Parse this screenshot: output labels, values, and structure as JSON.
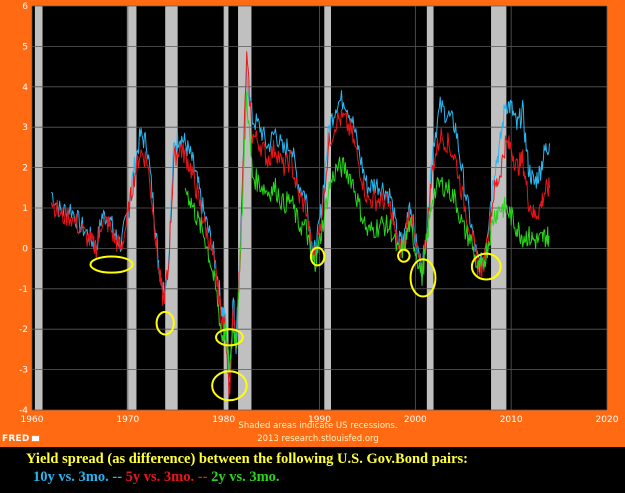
{
  "chart_data": {
    "type": "line",
    "title": "",
    "xlabel": "",
    "ylabel": "",
    "xlim": [
      1960,
      2020
    ],
    "ylim": [
      -4,
      6
    ],
    "x_ticks": [
      "1960",
      "1970",
      "1980",
      "1990",
      "2000",
      "2010",
      "2020"
    ],
    "y_ticks": [
      "-4",
      "-3",
      "-2",
      "-1",
      "0",
      "1",
      "2",
      "3",
      "4",
      "5",
      "6"
    ],
    "grid": true,
    "background": "#000000",
    "recession_color": "#c0c0c0",
    "recessions": [
      [
        1960.3,
        1961.1
      ],
      [
        1969.9,
        1970.9
      ],
      [
        1973.9,
        1975.2
      ],
      [
        1980.0,
        1980.5
      ],
      [
        1981.5,
        1982.9
      ],
      [
        1990.5,
        1991.2
      ],
      [
        2001.2,
        2001.9
      ],
      [
        2007.9,
        2009.5
      ]
    ],
    "series": [
      {
        "name": "10y vs. 3mo.",
        "color": "#2ab5ee",
        "x": [
          1962.0,
          1963.0,
          1964.0,
          1965.0,
          1966.0,
          1966.7,
          1967.3,
          1968.0,
          1968.7,
          1969.3,
          1970.0,
          1970.6,
          1971.3,
          1972.0,
          1972.7,
          1973.2,
          1973.7,
          1974.2,
          1974.8,
          1975.4,
          1976.0,
          1976.7,
          1977.3,
          1978.0,
          1978.7,
          1979.3,
          1979.8,
          1980.2,
          1980.6,
          1981.0,
          1981.3,
          1981.8,
          1982.4,
          1983.0,
          1983.8,
          1984.6,
          1985.4,
          1986.2,
          1987.0,
          1987.8,
          1988.6,
          1989.2,
          1989.6,
          1990.2,
          1991.0,
          1991.8,
          1992.6,
          1993.4,
          1994.2,
          1995.0,
          1995.8,
          1996.6,
          1997.4,
          1998.2,
          1998.8,
          1999.4,
          2000.0,
          2000.7,
          2001.2,
          2001.8,
          2002.6,
          2003.4,
          2004.2,
          2005.0,
          2005.8,
          2006.5,
          2007.0,
          2007.6,
          2008.2,
          2008.8,
          2009.4,
          2010.0,
          2010.6,
          2011.2,
          2011.8,
          2012.4,
          2013.0,
          2013.5,
          2014.0
        ],
        "values": [
          1.4,
          0.9,
          1.0,
          0.6,
          0.3,
          0.0,
          0.8,
          0.8,
          0.3,
          0.1,
          0.9,
          1.9,
          2.8,
          2.6,
          1.0,
          -0.3,
          -1.0,
          -0.5,
          2.5,
          2.8,
          2.6,
          2.2,
          1.6,
          0.8,
          0.2,
          -0.6,
          -1.5,
          -1.8,
          -3.3,
          -1.2,
          -2.4,
          0.6,
          4.3,
          3.2,
          3.0,
          2.5,
          2.9,
          2.4,
          2.6,
          1.6,
          1.3,
          0.1,
          -0.1,
          1.0,
          3.0,
          3.6,
          3.7,
          3.2,
          2.3,
          1.5,
          1.6,
          1.5,
          1.3,
          0.2,
          0.2,
          1.2,
          0.2,
          -0.5,
          0.5,
          2.5,
          3.5,
          3.3,
          3.0,
          1.7,
          0.6,
          -0.3,
          -0.4,
          0.6,
          1.9,
          2.5,
          3.6,
          3.5,
          3.0,
          3.4,
          2.0,
          1.6,
          1.9,
          2.4,
          2.6
        ]
      },
      {
        "name": "5y vs. 3mo.",
        "color": "#e8161a",
        "x": [
          1962.0,
          1963.0,
          1964.0,
          1965.0,
          1966.0,
          1966.7,
          1967.3,
          1968.0,
          1968.7,
          1969.3,
          1970.0,
          1970.6,
          1971.3,
          1972.0,
          1972.7,
          1973.2,
          1973.7,
          1974.2,
          1974.8,
          1975.4,
          1976.0,
          1976.7,
          1977.3,
          1978.0,
          1978.7,
          1979.3,
          1979.8,
          1980.2,
          1980.6,
          1981.0,
          1981.3,
          1981.8,
          1982.4,
          1983.0,
          1983.8,
          1984.6,
          1985.4,
          1986.2,
          1987.0,
          1987.8,
          1988.6,
          1989.2,
          1989.6,
          1990.2,
          1991.0,
          1991.8,
          1992.6,
          1993.4,
          1994.2,
          1995.0,
          1995.8,
          1996.6,
          1997.4,
          1998.2,
          1998.8,
          1999.4,
          2000.0,
          2000.7,
          2001.2,
          2001.8,
          2002.6,
          2003.4,
          2004.2,
          2005.0,
          2005.8,
          2006.5,
          2007.0,
          2007.6,
          2008.2,
          2008.8,
          2009.4,
          2010.0,
          2010.6,
          2011.2,
          2011.8,
          2012.4,
          2013.0,
          2013.5,
          2014.0
        ],
        "values": [
          1.2,
          0.8,
          0.8,
          0.5,
          0.2,
          0.0,
          0.7,
          0.6,
          0.2,
          0.0,
          0.8,
          1.7,
          2.4,
          2.2,
          0.8,
          -0.5,
          -1.3,
          -0.6,
          2.2,
          2.5,
          2.3,
          1.9,
          1.3,
          0.6,
          0.0,
          -0.8,
          -1.8,
          -2.0,
          -3.6,
          -1.5,
          -2.6,
          0.4,
          4.7,
          2.8,
          2.6,
          2.2,
          2.5,
          2.0,
          2.2,
          1.3,
          1.0,
          -0.1,
          -0.2,
          0.8,
          2.6,
          3.2,
          3.2,
          2.8,
          2.0,
          1.2,
          1.2,
          1.2,
          1.0,
          0.0,
          0.0,
          1.0,
          0.1,
          -0.6,
          0.4,
          2.0,
          2.8,
          2.6,
          2.2,
          1.2,
          0.4,
          -0.4,
          -0.5,
          0.3,
          1.4,
          1.8,
          2.6,
          2.5,
          2.0,
          2.2,
          1.2,
          0.8,
          1.0,
          1.4,
          1.5
        ]
      },
      {
        "name": "2y vs. 3mo.",
        "color": "#27d61a",
        "x": [
          1976.0,
          1976.7,
          1977.3,
          1978.0,
          1978.7,
          1979.3,
          1979.8,
          1980.2,
          1980.6,
          1981.0,
          1981.3,
          1981.8,
          1982.4,
          1983.0,
          1983.8,
          1984.6,
          1985.4,
          1986.2,
          1987.0,
          1987.8,
          1988.6,
          1989.2,
          1989.6,
          1990.2,
          1991.0,
          1991.8,
          1992.6,
          1993.4,
          1994.2,
          1995.0,
          1995.8,
          1996.6,
          1997.4,
          1998.2,
          1998.8,
          1999.4,
          2000.0,
          2000.7,
          2001.2,
          2001.8,
          2002.6,
          2003.4,
          2004.2,
          2005.0,
          2005.8,
          2006.5,
          2007.0,
          2007.6,
          2008.2,
          2008.8,
          2009.4,
          2010.0,
          2010.6,
          2011.2,
          2011.8,
          2012.4,
          2013.0,
          2013.5,
          2014.0
        ],
        "values": [
          1.5,
          1.1,
          0.7,
          0.3,
          -0.4,
          -1.2,
          -2.2,
          -2.0,
          -3.0,
          -1.8,
          -2.5,
          0.2,
          3.8,
          1.8,
          1.6,
          1.4,
          1.5,
          1.1,
          1.2,
          0.6,
          0.5,
          -0.3,
          -0.3,
          0.4,
          1.5,
          2.0,
          2.0,
          1.7,
          1.0,
          0.4,
          0.5,
          0.6,
          0.5,
          -0.1,
          0.0,
          0.6,
          0.0,
          -0.7,
          0.2,
          1.3,
          1.6,
          1.5,
          1.2,
          0.5,
          0.2,
          -0.5,
          -0.5,
          0.1,
          0.8,
          1.0,
          1.0,
          0.8,
          0.5,
          0.3,
          0.3,
          0.2,
          0.2,
          0.3,
          0.3
        ]
      }
    ],
    "note_lines": [
      "Shaded areas indicate US recessions.",
      "2013 research.stlouisfed.org"
    ],
    "highlights": [
      {
        "x": 1968.3,
        "y": -0.4,
        "rx": 2.2,
        "ry": 0.2
      },
      {
        "x": 1973.9,
        "y": -1.85,
        "rx": 0.9,
        "ry": 0.28
      },
      {
        "x": 1980.6,
        "y": -2.2,
        "rx": 1.4,
        "ry": 0.2
      },
      {
        "x": 1980.6,
        "y": -3.4,
        "rx": 1.8,
        "ry": 0.36
      },
      {
        "x": 1989.8,
        "y": -0.2,
        "rx": 0.7,
        "ry": 0.22
      },
      {
        "x": 1998.8,
        "y": -0.18,
        "rx": 0.6,
        "ry": 0.15
      },
      {
        "x": 2000.8,
        "y": -0.73,
        "rx": 1.3,
        "ry": 0.46
      },
      {
        "x": 2007.4,
        "y": -0.45,
        "rx": 1.5,
        "ry": 0.32
      }
    ],
    "highlight_color": "#ffff00"
  },
  "branding": {
    "logo_text": "FRED"
  },
  "caption": {
    "line1": "Yield spread (as difference) between the following U.S. Gov.Bond pairs:",
    "line2": [
      {
        "text": "10y vs. 3mo.",
        "color": "#2ab5ee"
      },
      {
        "text": " -- ",
        "color": "#2ab5ee"
      },
      {
        "text": "5y vs. 3mo.",
        "color": "#e8161a"
      },
      {
        "text": " -- ",
        "color": "#e8161a"
      },
      {
        "text": "2y vs. 3mo.",
        "color": "#27d61a"
      }
    ]
  }
}
